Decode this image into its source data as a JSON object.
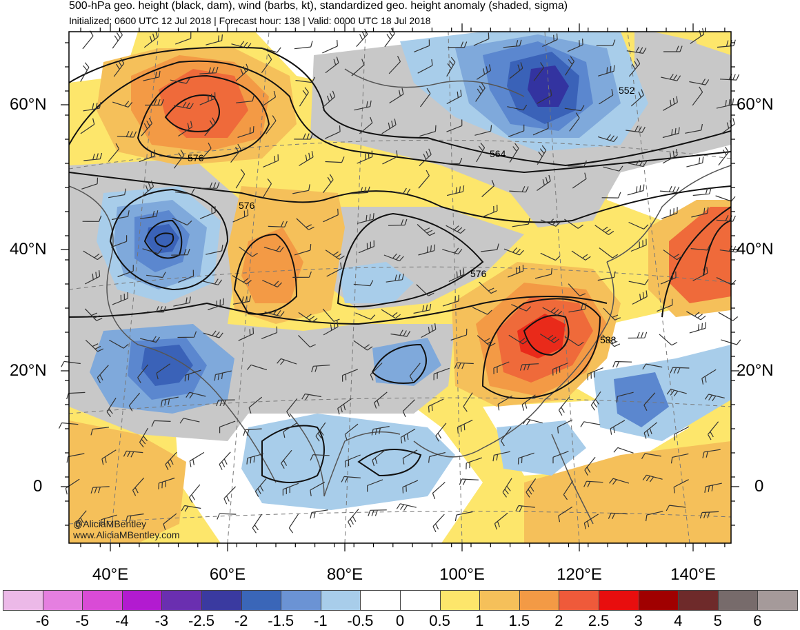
{
  "header": {
    "title": "500-hPa geo. height (black, dam), wind (barbs, kt), standardized geo. height anomaly (shaded, sigma)",
    "subtitle": "Initialized: 0600 UTC 12 Jul 2018 | Forecast hour: 138 | Valid: 0000 UTC 18 Jul 2018"
  },
  "map": {
    "lat_labels_left": [
      "60°N",
      "40°N",
      "20°N",
      "0"
    ],
    "lat_labels_right": [
      "60°N",
      "40°N",
      "20°N",
      "0"
    ],
    "lon_labels": [
      "40°E",
      "60°E",
      "80°E",
      "100°E",
      "120°E",
      "140°E"
    ],
    "contour_labels": [
      "552",
      "564",
      "576",
      "576",
      "576",
      "588"
    ],
    "credit_handle": "@AliciaMBentley",
    "credit_site": "www.AliciaMBentley.com",
    "colors": {
      "land_gray": "#c8c8c8",
      "neg_0_5": "#a8cdea",
      "neg_1": "#7fa9db",
      "neg_1_5": "#5b87cf",
      "neg_2": "#3a62b8",
      "neg_2_5": "#3333a0",
      "pos_0_5": "#fde66b",
      "pos_1": "#f5c05a",
      "pos_1_5": "#f39a45",
      "pos_2": "#ef6a3a",
      "pos_2_5": "#e92a1a"
    }
  },
  "colorbar": {
    "labels": [
      "-6",
      "-5",
      "-4",
      "-3",
      "-2.5",
      "-2",
      "-1.5",
      "-1",
      "-0.5",
      "0",
      "0.5",
      "1",
      "1.5",
      "2",
      "2.5",
      "3",
      "4",
      "5",
      "6"
    ],
    "colors": [
      "#ecb9e8",
      "#e57fe0",
      "#d94bd6",
      "#b21bd0",
      "#6a2fb0",
      "#3a3aa0",
      "#3a66b8",
      "#6b93d4",
      "#a8cdea",
      "#ffffff",
      "#ffffff",
      "#fde66b",
      "#f5c05a",
      "#f39a45",
      "#ef5a3a",
      "#e80e0e",
      "#a00000",
      "#6e2a2a",
      "#776b6b",
      "#a59a9a"
    ]
  }
}
